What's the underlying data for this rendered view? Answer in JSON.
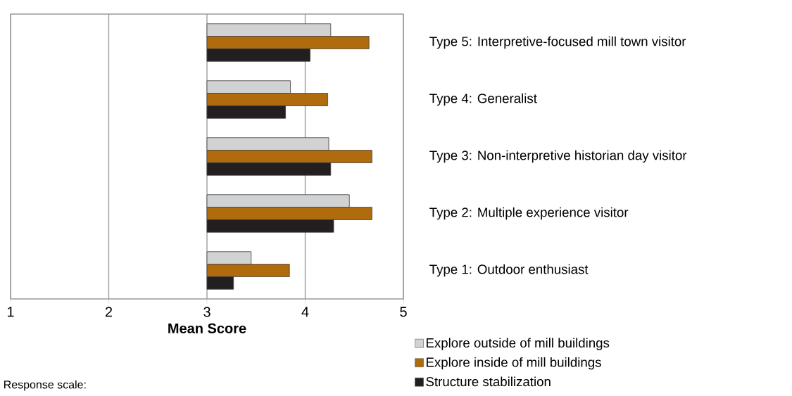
{
  "chart_data": {
    "type": "bar",
    "orientation": "horizontal",
    "xlabel": "Mean Score",
    "categories": [
      "Type 5: Interpretive-focused mill town visitor",
      "Type 4: Generalist",
      "Type 3: Non-interpretive historian day visitor",
      "Type 2: Multiple experience visitor",
      "Type 1: Outdoor enthusiast"
    ],
    "series": [
      {
        "name": "Explore outside of mill buildings",
        "color": "#d1d2d4",
        "base": [
          3,
          3,
          3,
          3,
          3
        ],
        "values": [
          1.26,
          0.85,
          1.24,
          1.45,
          0.45
        ]
      },
      {
        "name": "Explore inside of mill buildings",
        "color": "#b06b0e",
        "base": [
          3,
          3,
          3,
          3,
          3
        ],
        "values": [
          1.65,
          1.23,
          1.68,
          1.68,
          0.84
        ]
      },
      {
        "name": "Structure stabilization",
        "color": "#231f20",
        "base": [
          3,
          3,
          3,
          3,
          3
        ],
        "values": [
          1.05,
          0.8,
          1.26,
          1.29,
          0.27
        ]
      }
    ],
    "xlim": [
      1,
      5
    ],
    "xticks": [
      1,
      2,
      3,
      4,
      5
    ],
    "grid": "x",
    "legend": "bottom right",
    "annotations": [
      "Response scale:"
    ]
  }
}
